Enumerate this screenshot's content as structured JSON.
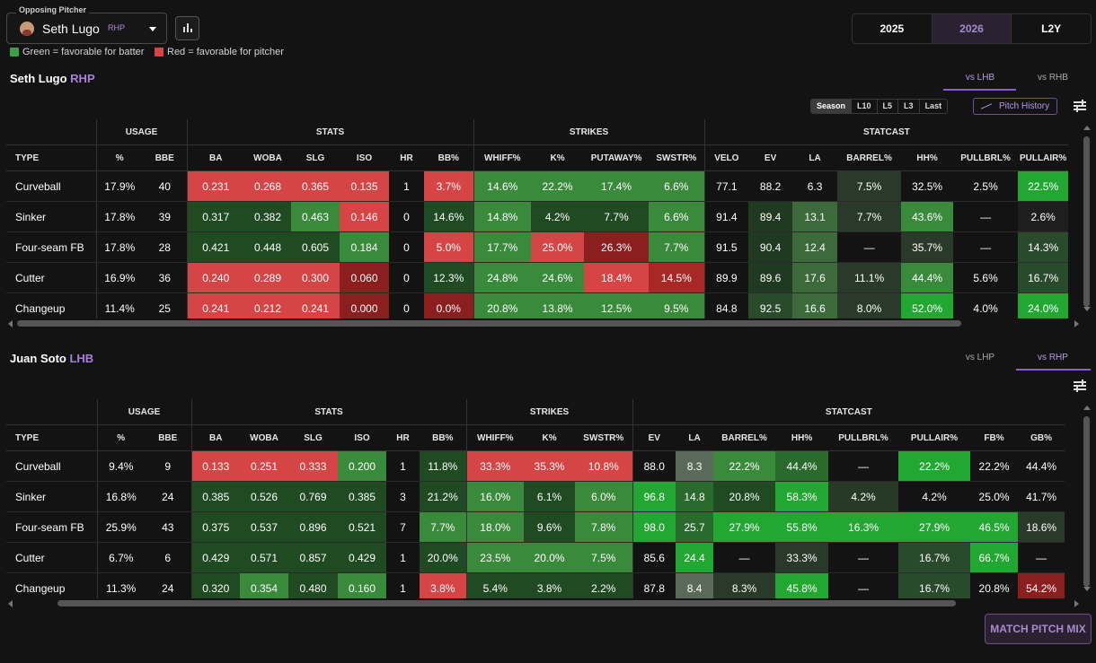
{
  "header": {
    "opposing_label": "Opposing Pitcher",
    "pitcher_name": "Seth Lugo",
    "pitcher_hand": "RHP",
    "legend_green": "Green = favorable for batter",
    "legend_red": "Red = favorable for pitcher",
    "seasons": [
      "2025",
      "2026",
      "L2Y"
    ],
    "active_season": "2026"
  },
  "pitcher_section": {
    "name": "Seth Lugo",
    "hand": "RHP",
    "tabs": [
      "vs LHB",
      "vs RHB"
    ],
    "active_tab": "vs LHB",
    "ranges": [
      "Season",
      "L10",
      "L5",
      "L3",
      "Last"
    ],
    "active_range": "Season",
    "history_label": "Pitch History",
    "groups": [
      {
        "label": "",
        "span": 1
      },
      {
        "label": "USAGE",
        "span": 2
      },
      {
        "label": "STATS",
        "span": 6
      },
      {
        "label": "STRIKES",
        "span": 4
      },
      {
        "label": "STATCAST",
        "span": 7
      }
    ],
    "columns": [
      "TYPE",
      "%",
      "BBE",
      "BA",
      "WOBA",
      "SLG",
      "ISO",
      "HR",
      "BB%",
      "WHIFF%",
      "K%",
      "PUTAWAY%",
      "SWSTR%",
      "VELO",
      "EV",
      "LA",
      "BARREL%",
      "HH%",
      "PULLBRL%",
      "PULLAIR%"
    ],
    "rows": [
      {
        "cells": [
          "Curveball",
          "17.9%",
          "40",
          "0.231",
          "0.268",
          "0.365",
          "0.135",
          "1",
          "3.7%",
          "14.6%",
          "22.2%",
          "17.4%",
          "6.6%",
          "77.1",
          "88.2",
          "6.3",
          "7.5%",
          "32.5%",
          "2.5%",
          "22.5%"
        ],
        "colors": [
          "",
          "",
          "",
          "#d64545",
          "#d64545",
          "#d64545",
          "#d64545",
          "",
          "#d64545",
          "#3a8a3c",
          "#3a8a3c",
          "#3a8a3c",
          "#3a8a3c",
          "",
          "",
          "",
          "#2a3a2a",
          "",
          "",
          "#22a832"
        ]
      },
      {
        "cells": [
          "Sinker",
          "17.8%",
          "39",
          "0.317",
          "0.382",
          "0.463",
          "0.146",
          "0",
          "14.6%",
          "14.8%",
          "4.2%",
          "7.7%",
          "6.6%",
          "91.4",
          "89.4",
          "13.1",
          "7.7%",
          "43.6%",
          "—",
          "2.6%"
        ],
        "colors": [
          "",
          "",
          "",
          "#1f4a22",
          "#1f4a22",
          "#3a8a3c",
          "#d64545",
          "",
          "#1f4a22",
          "#3a8a3c",
          "#1f4a22",
          "#1f4a22",
          "#3a8a3c",
          "",
          "#1f3a20",
          "#3d6a3d",
          "#2a3a2a",
          "#3a8a3c",
          "",
          "#1e1e1e"
        ]
      },
      {
        "cells": [
          "Four-seam FB",
          "17.8%",
          "28",
          "0.421",
          "0.448",
          "0.605",
          "0.184",
          "0",
          "5.0%",
          "17.7%",
          "25.0%",
          "26.3%",
          "7.7%",
          "91.5",
          "90.4",
          "12.4",
          "—",
          "35.7%",
          "—",
          "14.3%"
        ],
        "colors": [
          "",
          "",
          "",
          "#1f4a22",
          "#1f4a22",
          "#1f4a22",
          "#3a8a3c",
          "",
          "#d64545",
          "#3a8a3c",
          "#d64545",
          "#8b1e1e",
          "#3a8a3c",
          "",
          "#1f3a20",
          "#3d6a3d",
          "",
          "#2a3a2a",
          "",
          "#2a4a2c"
        ]
      },
      {
        "cells": [
          "Cutter",
          "16.9%",
          "36",
          "0.240",
          "0.289",
          "0.300",
          "0.060",
          "0",
          "12.3%",
          "24.8%",
          "24.6%",
          "18.4%",
          "14.5%",
          "89.9",
          "89.6",
          "17.6",
          "11.1%",
          "44.4%",
          "5.6%",
          "16.7%"
        ],
        "colors": [
          "",
          "",
          "",
          "#d64545",
          "#d64545",
          "#d64545",
          "#8b1e1e",
          "",
          "#1f4a22",
          "#3a8a3c",
          "#3a8a3c",
          "#d64545",
          "#a82828",
          "",
          "#1f3a20",
          "#3d6a3d",
          "#2a3a2a",
          "#3a8a3c",
          "",
          "#2a4a2c"
        ]
      },
      {
        "cells": [
          "Changeup",
          "11.4%",
          "25",
          "0.241",
          "0.212",
          "0.241",
          "0.000",
          "0",
          "0.0%",
          "20.8%",
          "13.8%",
          "12.5%",
          "9.5%",
          "84.8",
          "92.5",
          "16.6",
          "8.0%",
          "52.0%",
          "4.0%",
          "24.0%"
        ],
        "colors": [
          "",
          "",
          "",
          "#d64545",
          "#d64545",
          "#d64545",
          "#8b1e1e",
          "",
          "#8b1e1e",
          "#3a8a3c",
          "#3a8a3c",
          "#3a8a3c",
          "#3a8a3c",
          "",
          "#2a4a2c",
          "#3d6a3d",
          "#2a3a2a",
          "#22a832",
          "",
          "#22a832"
        ]
      }
    ]
  },
  "batter_section": {
    "name": "Juan Soto",
    "hand": "LHB",
    "tabs": [
      "vs LHP",
      "vs RHP"
    ],
    "active_tab": "vs RHP",
    "groups": [
      {
        "label": "",
        "span": 1
      },
      {
        "label": "USAGE",
        "span": 2
      },
      {
        "label": "STATS",
        "span": 6
      },
      {
        "label": "STRIKES",
        "span": 3
      },
      {
        "label": "STATCAST",
        "span": 8
      }
    ],
    "columns": [
      "TYPE",
      "%",
      "BBE",
      "BA",
      "WOBA",
      "SLG",
      "ISO",
      "HR",
      "BB%",
      "WHIFF%",
      "K%",
      "SWSTR%",
      "EV",
      "LA",
      "BARREL%",
      "HH%",
      "PULLBRL%",
      "PULLAIR%",
      "FB%",
      "GB%"
    ],
    "rows": [
      {
        "cells": [
          "Curveball",
          "9.4%",
          "9",
          "0.133",
          "0.251",
          "0.333",
          "0.200",
          "1",
          "11.8%",
          "33.3%",
          "35.3%",
          "10.8%",
          "88.0",
          "8.3",
          "22.2%",
          "44.4%",
          "—",
          "22.2%",
          "22.2%",
          "44.4%"
        ],
        "colors": [
          "",
          "",
          "",
          "#d64545",
          "#d64545",
          "#d64545",
          "#3a8a3c",
          "",
          "#1f4a22",
          "#d64545",
          "#d64545",
          "#d64545",
          "",
          "#5a6a5a",
          "#3a8a3c",
          "#2a6a2c",
          "",
          "#22a832",
          "",
          ""
        ]
      },
      {
        "cells": [
          "Sinker",
          "16.8%",
          "24",
          "0.385",
          "0.526",
          "0.769",
          "0.385",
          "3",
          "21.2%",
          "16.0%",
          "6.1%",
          "6.0%",
          "96.8",
          "14.8",
          "20.8%",
          "58.3%",
          "4.2%",
          "4.2%",
          "25.0%",
          "41.7%"
        ],
        "colors": [
          "",
          "",
          "",
          "#1f4a22",
          "#1f4a22",
          "#1f4a22",
          "#1f4a22",
          "",
          "#1f4a22",
          "#3a8a3c",
          "#1f4a22",
          "#3a8a3c",
          "#22a832",
          "#2a6a2c",
          "#1f4a22",
          "#22a832",
          "#263a26",
          "",
          "",
          ""
        ]
      },
      {
        "cells": [
          "Four-seam FB",
          "25.9%",
          "43",
          "0.375",
          "0.537",
          "0.896",
          "0.521",
          "7",
          "7.7%",
          "18.0%",
          "9.6%",
          "7.8%",
          "98.0",
          "25.7",
          "27.9%",
          "55.8%",
          "16.3%",
          "27.9%",
          "46.5%",
          "18.6%"
        ],
        "colors": [
          "",
          "",
          "",
          "#1f4a22",
          "#1f4a22",
          "#1f4a22",
          "#1f4a22",
          "",
          "#3a8a3c",
          "#3a8a3c",
          "#1f4a22",
          "#3a8a3c",
          "#22a832",
          "#2a6a2c",
          "#22a832",
          "#22a832",
          "#22a832",
          "#22a832",
          "#22a832",
          "#2a3a2a"
        ]
      },
      {
        "cells": [
          "Cutter",
          "6.7%",
          "6",
          "0.429",
          "0.571",
          "0.857",
          "0.429",
          "1",
          "20.0%",
          "23.5%",
          "20.0%",
          "7.5%",
          "85.6",
          "24.4",
          "—",
          "33.3%",
          "—",
          "16.7%",
          "66.7%",
          "—"
        ],
        "colors": [
          "",
          "",
          "",
          "#1f4a22",
          "#1f4a22",
          "#1f4a22",
          "#1f4a22",
          "",
          "#1f4a22",
          "#3a8a3c",
          "#3a8a3c",
          "#3a8a3c",
          "",
          "#22a832",
          "",
          "#2a3a2a",
          "",
          "#2a4a2c",
          "#22a832",
          ""
        ]
      },
      {
        "cells": [
          "Changeup",
          "11.3%",
          "24",
          "0.320",
          "0.354",
          "0.480",
          "0.160",
          "1",
          "3.8%",
          "5.4%",
          "3.8%",
          "2.2%",
          "87.8",
          "8.4",
          "8.3%",
          "45.8%",
          "—",
          "16.7%",
          "20.8%",
          "54.2%"
        ],
        "colors": [
          "",
          "",
          "",
          "#1f4a22",
          "#3a8a3c",
          "#1f4a22",
          "#3a8a3c",
          "",
          "#d64545",
          "#1f4a22",
          "#1f4a22",
          "#1f4a22",
          "",
          "#5a6a5a",
          "#2a3a2a",
          "#22a832",
          "",
          "#2a4a2c",
          "",
          "#8b1e1e"
        ]
      }
    ]
  },
  "match_button": "MATCH PITCH MIX"
}
